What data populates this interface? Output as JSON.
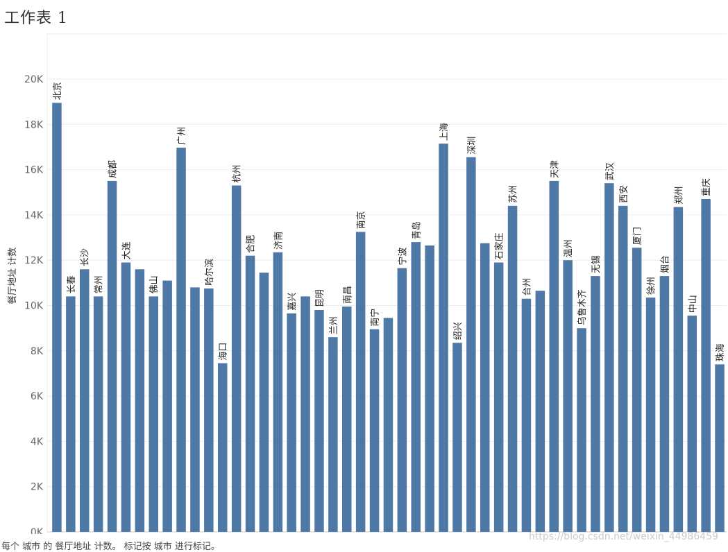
{
  "sheet": {
    "title": "工作表 1",
    "caption": "每个 城市 的 餐厅地址 计数。 标记按 城市 进行标记。",
    "watermark": "https://blog.csdn.net/weixin_44986459"
  },
  "colors": {
    "bar": "#4e79a7",
    "grid": "#eeeeee",
    "axis": "#cccccc"
  },
  "chart_data": {
    "type": "bar",
    "title": "",
    "xlabel": "",
    "ylabel": "餐厅地址 计数",
    "ylim": [
      0,
      22000
    ],
    "yticks": [
      0,
      2000,
      4000,
      6000,
      8000,
      10000,
      12000,
      14000,
      16000,
      18000,
      20000
    ],
    "ytick_labels": [
      "0K",
      "2K",
      "4K",
      "6K",
      "8K",
      "10K",
      "12K",
      "14K",
      "16K",
      "18K",
      "20K"
    ],
    "grid": true,
    "categories": [
      "北京",
      "长春",
      "长沙",
      "常州",
      "成都",
      "大连",
      "",
      "佛山",
      "",
      "广州",
      "",
      "哈尔滨",
      "海口",
      "杭州",
      "合肥",
      "",
      "济南",
      "嘉兴",
      "",
      "昆明",
      "兰州",
      "南昌",
      "南京",
      "南宁",
      "",
      "宁波",
      "青岛",
      "",
      "上海",
      "绍兴",
      "深圳",
      "",
      "石家庄",
      "苏州",
      "台州",
      "",
      "天津",
      "温州",
      "乌鲁木齐",
      "无锡",
      "武汉",
      "西安",
      "厦门",
      "徐州",
      "烟台",
      "郑州",
      "中山",
      "重庆",
      "珠海"
    ],
    "values": [
      18950,
      10400,
      11600,
      10400,
      15500,
      11900,
      11600,
      10400,
      11100,
      16970,
      10800,
      10750,
      7450,
      15300,
      12200,
      11450,
      12350,
      9650,
      10400,
      9800,
      8600,
      9950,
      13250,
      8950,
      9450,
      11650,
      12800,
      12650,
      17150,
      8350,
      16550,
      12750,
      11900,
      14400,
      10300,
      10650,
      15500,
      12000,
      9000,
      11300,
      15400,
      14400,
      12550,
      10350,
      11300,
      14350,
      9550,
      14700,
      7400
    ]
  }
}
